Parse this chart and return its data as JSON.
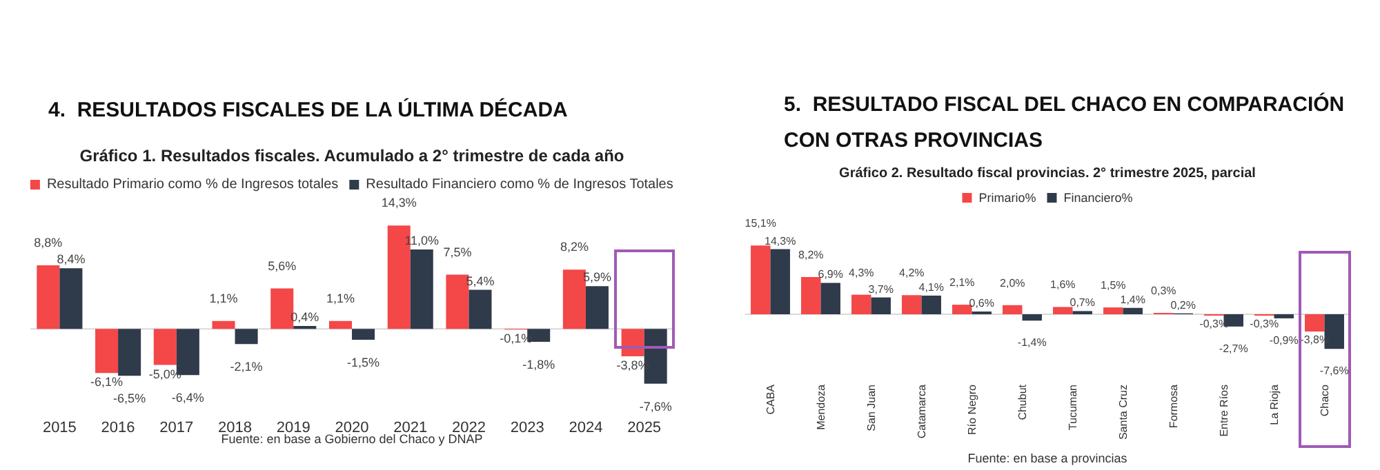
{
  "chart_data": [
    {
      "type": "bar",
      "title": "4.  RESULTADOS FISCALES DE LA ÚLTIMA DÉCADA",
      "subtitle": "Gráfico 1. Resultados fiscales. Acumulado a 2° trimestre de cada año",
      "categories": [
        "2015",
        "2016",
        "2017",
        "2018",
        "2019",
        "2020",
        "2021",
        "2022",
        "2023",
        "2024",
        "2025"
      ],
      "series": [
        {
          "name": "Resultado Primario como % de Ingresos totales",
          "color": "#f44748",
          "values": [
            8.8,
            -6.1,
            -5.0,
            1.1,
            5.6,
            1.1,
            14.3,
            7.5,
            -0.1,
            8.2,
            -3.8
          ],
          "value_labels": [
            "8,8%",
            "-6,1%",
            "-5,0%",
            "1,1%",
            "5,6%",
            "1,1%",
            "14,3%",
            "7,5%",
            "-0,1%",
            "8,2%",
            "-3,8%"
          ]
        },
        {
          "name": "Resultado Financiero como % de Ingresos Totales",
          "color": "#2f3a4b",
          "values": [
            8.4,
            -6.5,
            -6.4,
            -2.1,
            0.4,
            -1.5,
            11.0,
            5.4,
            -1.8,
            5.9,
            -7.6
          ],
          "value_labels": [
            "8,4%",
            "-6,5%",
            "-6,4%",
            "-2,1%",
            "0,4%",
            "-1,5%",
            "11,0%",
            "5,4%",
            "-1,8%",
            "5,9%",
            "-7,6%"
          ]
        }
      ],
      "legend": "top",
      "annotations": [
        "Fuente: en base a Gobierno del Chaco y DNAP"
      ]
    },
    {
      "type": "bar",
      "title": "5.  RESULTADO FISCAL DEL CHACO EN COMPARACIÓN CON OTRAS PROVINCIAS",
      "subtitle": "Gráfico 2. Resultado fiscal provincias. 2° trimestre 2025, parcial",
      "categories": [
        "CABA",
        "Mendoza",
        "San Juan",
        "Catamarca",
        "Río Negro",
        "Chubut",
        "Tucuman",
        "Santa Cruz",
        "Formosa",
        "Entre Ríos",
        "La Rioja",
        "Chaco"
      ],
      "series": [
        {
          "name": "Primario%",
          "color": "#f44748",
          "values": [
            15.1,
            8.2,
            4.3,
            4.2,
            2.1,
            2.0,
            1.6,
            1.5,
            0.3,
            -0.3,
            -0.3,
            -3.8
          ],
          "value_labels": [
            "15,1%",
            "8,2%",
            "4,3%",
            "4,2%",
            "2,1%",
            "2,0%",
            "1,6%",
            "1,5%",
            "0,3%",
            "-0,3%",
            "-0,3%",
            "-3,8%"
          ]
        },
        {
          "name": "Financiero%",
          "color": "#2f3a4b",
          "values": [
            14.3,
            6.9,
            3.7,
            4.1,
            0.6,
            -1.4,
            0.7,
            1.4,
            0.2,
            -2.7,
            -0.9,
            -7.6
          ],
          "value_labels": [
            "14,3%",
            "6,9%",
            "3,7%",
            "4,1%",
            "0,6%",
            "-1,4%",
            "0,7%",
            "1,4%",
            "0,2%",
            "-2,7%",
            "-0,9%",
            "-7,6%"
          ]
        }
      ],
      "legend": "top",
      "annotations": [
        "Fuente: en base a provincias"
      ]
    }
  ]
}
